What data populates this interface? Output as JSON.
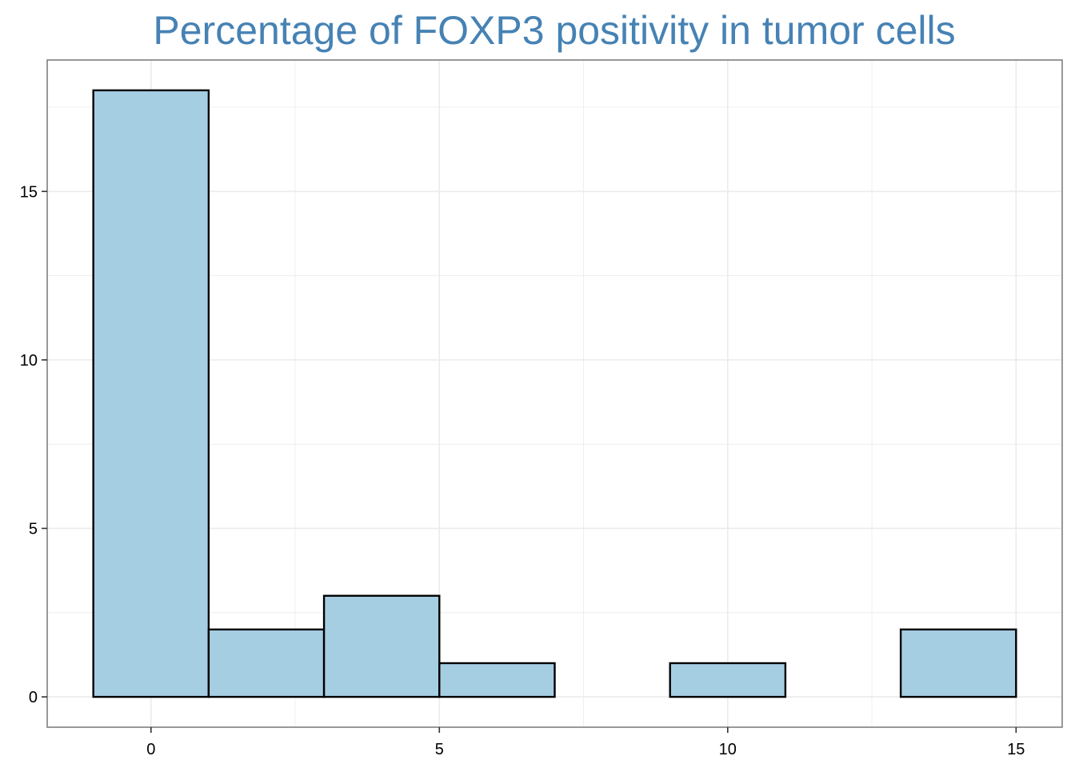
{
  "colors": {
    "title": "#4682B4",
    "bar_fill": "#A6CEE3",
    "bar_stroke": "#000000",
    "grid": "#EBEBEB",
    "panel_border": "#7F7F7F"
  },
  "chart_data": {
    "type": "bar",
    "title": "Percentage of FOXP3 positivity in tumor cells",
    "xlabel": "",
    "ylabel": "",
    "bins": [
      {
        "start": -1,
        "end": 1,
        "count": 18
      },
      {
        "start": 1,
        "end": 3,
        "count": 2
      },
      {
        "start": 3,
        "end": 5,
        "count": 3
      },
      {
        "start": 5,
        "end": 7,
        "count": 1
      },
      {
        "start": 7,
        "end": 9,
        "count": 0
      },
      {
        "start": 9,
        "end": 11,
        "count": 1
      },
      {
        "start": 11,
        "end": 13,
        "count": 0
      },
      {
        "start": 13,
        "end": 15,
        "count": 2
      }
    ],
    "xlim": [
      -1.8,
      15.8
    ],
    "ylim": [
      -0.9,
      18.9
    ],
    "x_ticks": [
      0,
      5,
      10,
      15
    ],
    "y_ticks": [
      0,
      5,
      10,
      15
    ],
    "x_tick_labels": [
      "0",
      "5",
      "10",
      "15"
    ],
    "y_tick_labels": [
      "0",
      "5",
      "10",
      "15"
    ],
    "grid": true,
    "legend": "none"
  }
}
